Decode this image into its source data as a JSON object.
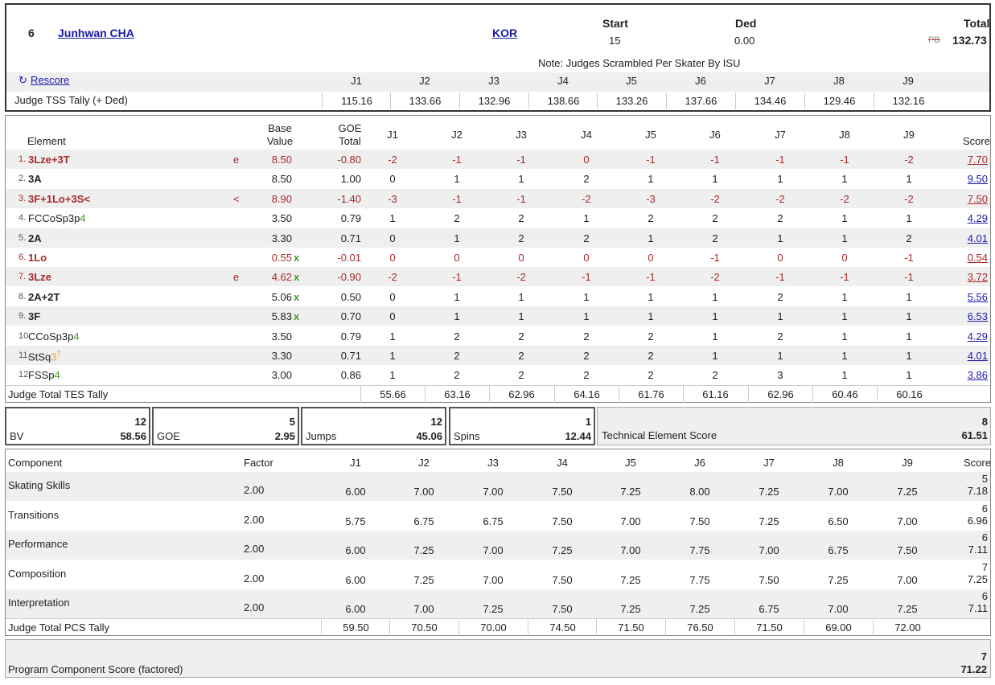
{
  "header": {
    "rank": "6",
    "skater": "Junhwan CHA",
    "nation": "KOR",
    "start_label": "Start",
    "start_value": "15",
    "ded_label": "Ded",
    "ded_value": "0.00",
    "total_label": "Total",
    "pb": "PB",
    "total_value": "132.73",
    "note": "Note: Judges Scrambled Per Skater By ISU",
    "rescore": "Rescore",
    "judges": [
      "J1",
      "J2",
      "J3",
      "J4",
      "J5",
      "J6",
      "J7",
      "J8",
      "J9"
    ],
    "tss_label": "Judge TSS Tally (+ Ded)",
    "tss": [
      "115.16",
      "133.66",
      "132.96",
      "138.66",
      "133.26",
      "137.66",
      "134.46",
      "129.46",
      "132.16"
    ]
  },
  "elements": {
    "headers": {
      "element": "Element",
      "base1": "Base",
      "base2": "Value",
      "goe1": "GOE",
      "goe2": "Total",
      "score": "Score"
    },
    "rows": [
      {
        "num": "1.",
        "name": "3Lze+3T",
        "info": "e",
        "bv": "8.50",
        "x": "",
        "goe": "-0.80",
        "judges": [
          "-2",
          "-1",
          "-1",
          "0",
          "-1",
          "-1",
          "-1",
          "-1",
          "-2"
        ],
        "score": "7.70",
        "style": "red"
      },
      {
        "num": "2.",
        "name": "3A",
        "info": "",
        "bv": "8.50",
        "x": "",
        "goe": "1.00",
        "judges": [
          "0",
          "1",
          "1",
          "2",
          "1",
          "1",
          "1",
          "1",
          "1"
        ],
        "score": "9.50",
        "style": "black"
      },
      {
        "num": "3.",
        "name": "3F+1Lo+3S<",
        "info": "<",
        "bv": "8.90",
        "x": "",
        "goe": "-1.40",
        "judges": [
          "-3",
          "-1",
          "-1",
          "-2",
          "-3",
          "-2",
          "-2",
          "-2",
          "-2"
        ],
        "score": "7.50",
        "style": "red"
      },
      {
        "num": "4.",
        "name": "FCCoSp3p",
        "level": "4",
        "info": "",
        "bv": "3.50",
        "x": "",
        "goe": "0.79",
        "judges": [
          "1",
          "2",
          "2",
          "1",
          "2",
          "2",
          "2",
          "1",
          "1"
        ],
        "score": "4.29",
        "style": "spin"
      },
      {
        "num": "5.",
        "name": "2A",
        "info": "",
        "bv": "3.30",
        "x": "",
        "goe": "0.71",
        "judges": [
          "0",
          "1",
          "2",
          "2",
          "1",
          "2",
          "1",
          "1",
          "2"
        ],
        "score": "4.01",
        "style": "black"
      },
      {
        "num": "6.",
        "name": "1Lo",
        "info": "",
        "bv": "0.55",
        "x": "x",
        "goe": "-0.01",
        "judges": [
          "0",
          "0",
          "0",
          "0",
          "0",
          "-1",
          "0",
          "0",
          "-1"
        ],
        "score": "0.54",
        "style": "red"
      },
      {
        "num": "7.",
        "name": "3Lze",
        "info": "e",
        "bv": "4.62",
        "x": "x",
        "goe": "-0.90",
        "judges": [
          "-2",
          "-1",
          "-2",
          "-1",
          "-1",
          "-2",
          "-1",
          "-1",
          "-1"
        ],
        "score": "3.72",
        "style": "red"
      },
      {
        "num": "8.",
        "name": "2A+2T",
        "info": "",
        "bv": "5.06",
        "x": "x",
        "goe": "0.50",
        "judges": [
          "0",
          "1",
          "1",
          "1",
          "1",
          "1",
          "2",
          "1",
          "1"
        ],
        "score": "5.56",
        "style": "black"
      },
      {
        "num": "9.",
        "name": "3F",
        "info": "",
        "bv": "5.83",
        "x": "x",
        "goe": "0.70",
        "judges": [
          "0",
          "1",
          "1",
          "1",
          "1",
          "1",
          "1",
          "1",
          "1"
        ],
        "score": "6.53",
        "style": "black"
      },
      {
        "num": "10.",
        "name": "CCoSp3p",
        "level": "4",
        "info": "",
        "bv": "3.50",
        "x": "",
        "goe": "0.79",
        "judges": [
          "1",
          "2",
          "2",
          "2",
          "2",
          "1",
          "2",
          "1",
          "1"
        ],
        "score": "4.29",
        "style": "spin"
      },
      {
        "num": "11.",
        "name": "StSq",
        "level": "3",
        "sup": "7",
        "info": "",
        "bv": "3.30",
        "x": "",
        "goe": "0.71",
        "judges": [
          "1",
          "2",
          "2",
          "2",
          "2",
          "1",
          "1",
          "1",
          "1"
        ],
        "score": "4.01",
        "style": "step"
      },
      {
        "num": "12.",
        "name": "FSSp",
        "level": "4",
        "info": "",
        "bv": "3.00",
        "x": "",
        "goe": "0.86",
        "judges": [
          "1",
          "2",
          "2",
          "2",
          "2",
          "2",
          "3",
          "1",
          "1"
        ],
        "score": "3.86",
        "style": "spin"
      }
    ],
    "tes_label": "Judge Total TES Tally",
    "tes": [
      "55.66",
      "63.16",
      "62.96",
      "64.16",
      "61.76",
      "61.16",
      "62.96",
      "60.46",
      "60.16"
    ]
  },
  "summary": {
    "bv_label": "BV",
    "bv_rank": "12",
    "bv_value": "58.56",
    "goe_label": "GOE",
    "goe_rank": "5",
    "goe_value": "2.95",
    "jumps_label": "Jumps",
    "jumps_rank": "12",
    "jumps_value": "45.06",
    "spins_label": "Spins",
    "spins_rank": "1",
    "spins_value": "12.44",
    "tes_label": "Technical Element Score",
    "tes_rank": "8",
    "tes_value": "61.51"
  },
  "components": {
    "headers": {
      "component": "Component",
      "factor": "Factor",
      "score": "Score"
    },
    "rows": [
      {
        "name": "Skating Skills",
        "factor": "2.00",
        "judges": [
          "6.00",
          "7.00",
          "7.00",
          "7.50",
          "7.25",
          "8.00",
          "7.25",
          "7.00",
          "7.25"
        ],
        "rank": "5",
        "score": "7.18"
      },
      {
        "name": "Transitions",
        "factor": "2.00",
        "judges": [
          "5.75",
          "6.75",
          "6.75",
          "7.50",
          "7.00",
          "7.50",
          "7.25",
          "6.50",
          "7.00"
        ],
        "rank": "6",
        "score": "6.96"
      },
      {
        "name": "Performance",
        "factor": "2.00",
        "judges": [
          "6.00",
          "7.25",
          "7.00",
          "7.25",
          "7.00",
          "7.75",
          "7.00",
          "6.75",
          "7.50"
        ],
        "rank": "6",
        "score": "7.11"
      },
      {
        "name": "Composition",
        "factor": "2.00",
        "judges": [
          "6.00",
          "7.25",
          "7.00",
          "7.50",
          "7.25",
          "7.75",
          "7.50",
          "7.25",
          "7.00"
        ],
        "rank": "7",
        "score": "7.25"
      },
      {
        "name": "Interpretation",
        "factor": "2.00",
        "judges": [
          "6.00",
          "7.00",
          "7.25",
          "7.50",
          "7.25",
          "7.25",
          "6.75",
          "7.00",
          "7.25"
        ],
        "rank": "6",
        "score": "7.11"
      }
    ],
    "pcs_tally_label": "Judge Total PCS Tally",
    "pcs_tally": [
      "59.50",
      "70.50",
      "70.00",
      "74.50",
      "71.50",
      "76.50",
      "71.50",
      "69.00",
      "72.00"
    ]
  },
  "pcs_total": {
    "label": "Program Component Score (factored)",
    "rank": "7",
    "value": "71.22"
  },
  "colors": {
    "link": "#1a1aa6",
    "negative": "#a52a2a",
    "level": "#4a9a2a",
    "step_level": "#e8a040",
    "row_shade": "#efefef",
    "border": "#333333"
  }
}
